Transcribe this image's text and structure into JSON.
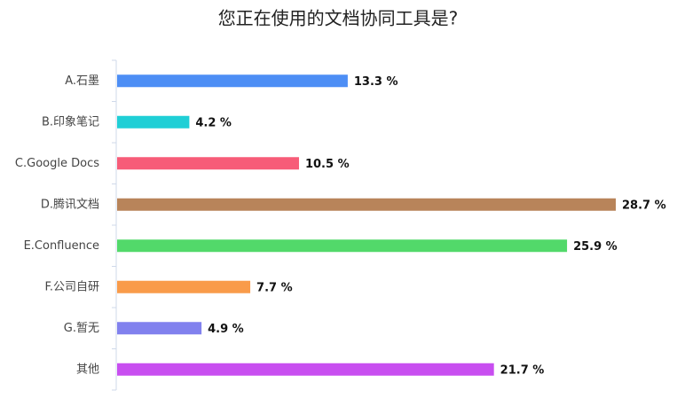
{
  "chart_data": {
    "type": "bar",
    "orientation": "horizontal",
    "title": "您正在使用的文档协同工具是?",
    "categories": [
      "A.石墨",
      "B.印象笔记",
      "C.Google Docs",
      "D.腾讯文档",
      "E.Confluence",
      "F.公司自研",
      "G.暂无",
      "其他"
    ],
    "values": [
      13.3,
      4.2,
      10.5,
      28.7,
      25.9,
      7.7,
      4.9,
      21.7
    ],
    "value_labels": [
      "13.3 %",
      "4.2 %",
      "10.5 %",
      "28.7 %",
      "25.9 %",
      "7.7 %",
      "4.9 %",
      "21.7 %"
    ],
    "colors": [
      "#4d8ef5",
      "#1fcfd6",
      "#f75c78",
      "#b8845a",
      "#52d96a",
      "#f99b4a",
      "#8181ee",
      "#c84ef0"
    ]
  }
}
